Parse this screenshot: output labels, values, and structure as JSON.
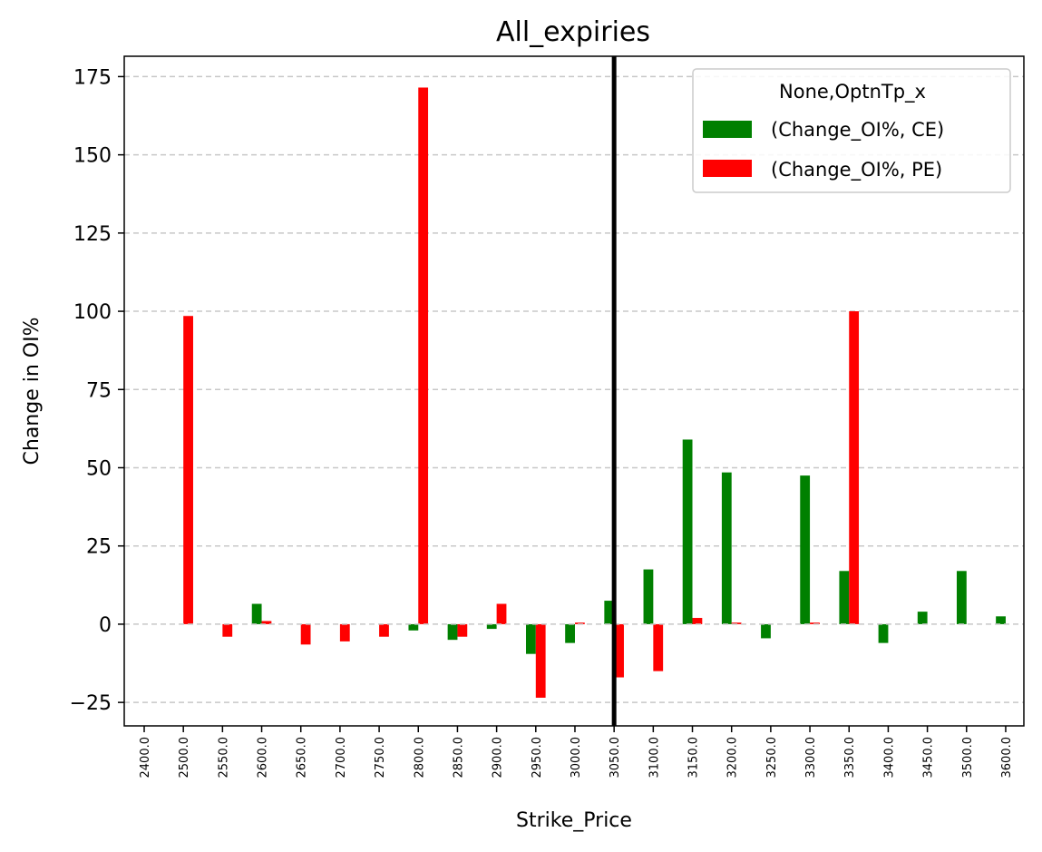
{
  "chart_data": {
    "type": "bar",
    "title": "All_expiries",
    "xlabel": "Strike_Price",
    "ylabel": "Change in OI%",
    "categories": [
      "2400.0",
      "2500.0",
      "2550.0",
      "2600.0",
      "2650.0",
      "2700.0",
      "2750.0",
      "2800.0",
      "2850.0",
      "2900.0",
      "2950.0",
      "3000.0",
      "3050.0",
      "3100.0",
      "3150.0",
      "3200.0",
      "3250.0",
      "3300.0",
      "3350.0",
      "3400.0",
      "3450.0",
      "3500.0",
      "3600.0"
    ],
    "series": [
      {
        "name": "(Change_OI%, CE)",
        "color": "#008000",
        "values": [
          0,
          0,
          0,
          6.5,
          0,
          0,
          0,
          -2,
          -5,
          -1.5,
          -9.5,
          -6,
          7.5,
          17.5,
          59,
          48.5,
          -4.5,
          47.5,
          17,
          -6,
          4,
          17,
          2.5
        ]
      },
      {
        "name": "(Change_OI%, PE)",
        "color": "#ff0000",
        "values": [
          0,
          98.5,
          -4,
          1,
          -6.5,
          -5.5,
          -4,
          171.5,
          -4,
          6.5,
          -23.5,
          0.5,
          -17,
          -15,
          2,
          0.5,
          0,
          0.5,
          100,
          0,
          0,
          0,
          0
        ]
      }
    ],
    "yticks": [
      -25,
      0,
      25,
      50,
      75,
      100,
      125,
      150,
      175
    ],
    "ylim": [
      -32.5,
      181.5
    ],
    "grid": "horizontal dashed",
    "vertical_line_at": "3050.0",
    "legend": {
      "title": "None,OptnTp_x",
      "position": "top-right"
    }
  }
}
